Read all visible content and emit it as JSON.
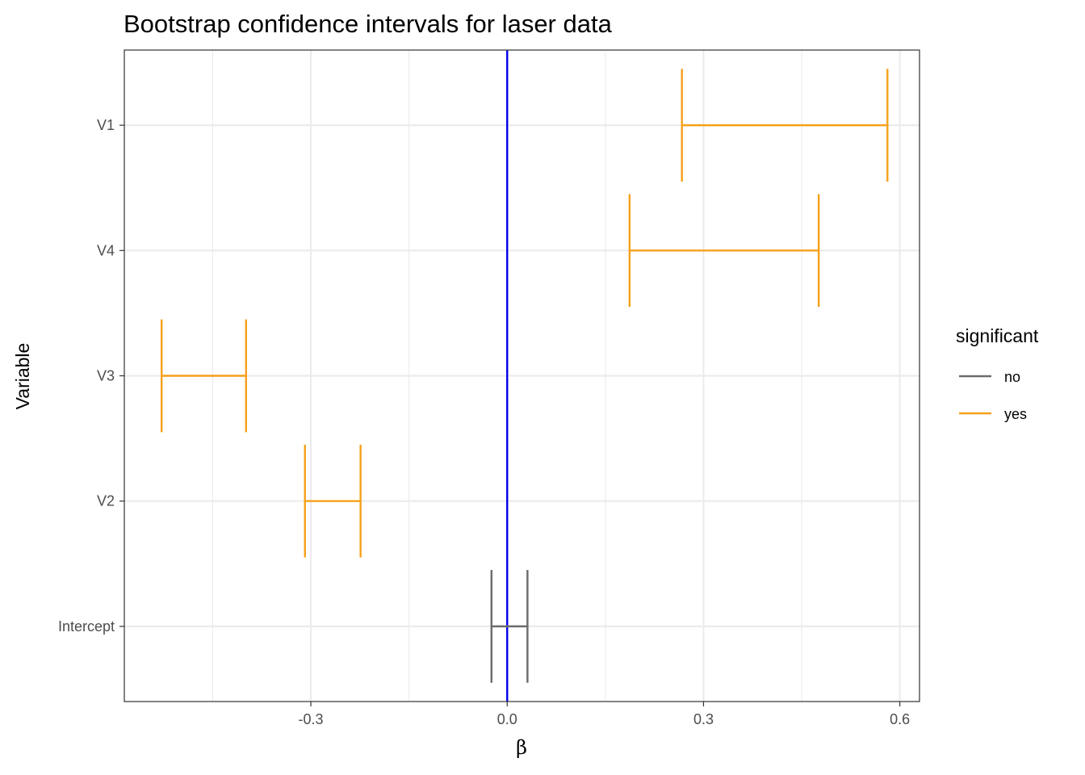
{
  "chart_data": {
    "type": "errorbar",
    "title": "Bootstrap confidence intervals for laser data",
    "xlabel": "β",
    "ylabel": "Variable",
    "xlim": [
      -0.585,
      0.63
    ],
    "x_ticks": [
      {
        "value": -0.3,
        "label": "-0.3"
      },
      {
        "value": 0.0,
        "label": "0.0"
      },
      {
        "value": 0.3,
        "label": "0.3"
      },
      {
        "value": 0.6,
        "label": "0.6"
      }
    ],
    "x_minor_ticks": [
      -0.45,
      -0.15,
      0.15,
      0.45
    ],
    "categories": [
      "Intercept",
      "V2",
      "V3",
      "V4",
      "V1"
    ],
    "intervals": [
      {
        "variable": "V1",
        "lower": 0.267,
        "upper": 0.581,
        "significant": "yes"
      },
      {
        "variable": "V4",
        "lower": 0.187,
        "upper": 0.476,
        "significant": "yes"
      },
      {
        "variable": "V3",
        "lower": -0.528,
        "upper": -0.399,
        "significant": "yes"
      },
      {
        "variable": "V2",
        "lower": -0.309,
        "upper": -0.224,
        "significant": "yes"
      },
      {
        "variable": "Intercept",
        "lower": -0.024,
        "upper": 0.031,
        "significant": "no"
      }
    ],
    "reference_line": {
      "x": 0,
      "color": "#0000ee"
    },
    "legend": {
      "title": "significant",
      "position": "right",
      "items": [
        {
          "label": "no",
          "color": "#6b6b6b"
        },
        {
          "label": "yes",
          "color": "#f6a01a"
        }
      ]
    },
    "grid": true
  }
}
